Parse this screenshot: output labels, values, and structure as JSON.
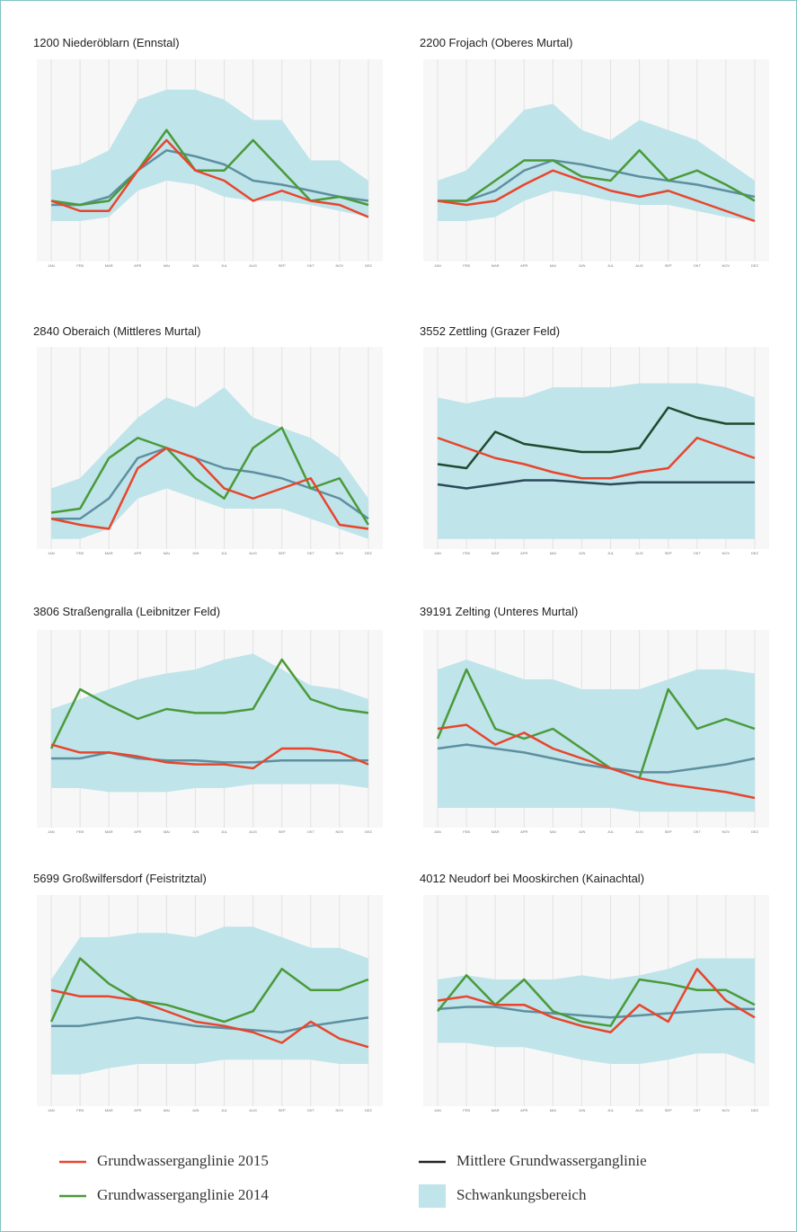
{
  "chart_data": [
    {
      "type": "line",
      "title": "1200 Niederöblarn (Ennstal)",
      "categories": [
        "JAN",
        "FEB",
        "MAR",
        "APR",
        "MAI",
        "JUN",
        "JUL",
        "AUG",
        "SEP",
        "OKT",
        "NOV",
        "DEZ"
      ],
      "ylim": [
        0,
        100
      ],
      "grid": true,
      "band": {
        "color": "#bfe4ea",
        "lower": [
          20,
          20,
          22,
          35,
          40,
          38,
          32,
          30,
          30,
          28,
          25,
          22
        ],
        "upper": [
          45,
          48,
          55,
          80,
          85,
          85,
          80,
          70,
          70,
          50,
          50,
          40
        ]
      },
      "series": [
        {
          "color": "#5e8fa0",
          "values": [
            28,
            28,
            32,
            45,
            55,
            52,
            48,
            40,
            38,
            35,
            32,
            30
          ]
        },
        {
          "color": "#4a9a3a",
          "values": [
            30,
            28,
            30,
            45,
            65,
            45,
            45,
            60,
            45,
            30,
            32,
            28
          ]
        },
        {
          "color": "#e8452c",
          "values": [
            30,
            25,
            25,
            45,
            60,
            45,
            40,
            30,
            35,
            30,
            28,
            22
          ]
        }
      ]
    },
    {
      "type": "line",
      "title": "2200 Frojach (Oberes Murtal)",
      "categories": [
        "JAN",
        "FEB",
        "MAR",
        "APR",
        "MAI",
        "JUN",
        "JUL",
        "AUG",
        "SEP",
        "OKT",
        "NOV",
        "DEZ"
      ],
      "ylim": [
        0,
        100
      ],
      "grid": true,
      "band": {
        "color": "#bfe4ea",
        "lower": [
          20,
          20,
          22,
          30,
          35,
          33,
          30,
          28,
          28,
          25,
          22,
          20
        ],
        "upper": [
          40,
          45,
          60,
          75,
          78,
          65,
          60,
          70,
          65,
          60,
          50,
          40
        ]
      },
      "series": [
        {
          "color": "#5e8fa0",
          "values": [
            30,
            30,
            35,
            45,
            50,
            48,
            45,
            42,
            40,
            38,
            35,
            32
          ]
        },
        {
          "color": "#4a9a3a",
          "values": [
            30,
            30,
            40,
            50,
            50,
            42,
            40,
            55,
            40,
            45,
            38,
            30
          ]
        },
        {
          "color": "#e8452c",
          "values": [
            30,
            28,
            30,
            38,
            45,
            40,
            35,
            32,
            35,
            30,
            25,
            20
          ]
        }
      ]
    },
    {
      "type": "line",
      "title": "2840 Oberaich (Mittleres Murtal)",
      "categories": [
        "JAN",
        "FEB",
        "MAR",
        "APR",
        "MAI",
        "JUN",
        "JUL",
        "AUG",
        "SEP",
        "OKT",
        "NOV",
        "DEZ"
      ],
      "ylim": [
        0,
        100
      ],
      "grid": true,
      "band": {
        "color": "#bfe4ea",
        "lower": [
          5,
          5,
          10,
          25,
          30,
          25,
          20,
          20,
          20,
          15,
          10,
          5
        ],
        "upper": [
          30,
          35,
          50,
          65,
          75,
          70,
          80,
          65,
          60,
          55,
          45,
          25
        ]
      },
      "series": [
        {
          "color": "#5e8fa0",
          "values": [
            15,
            15,
            25,
            45,
            50,
            45,
            40,
            38,
            35,
            30,
            25,
            15
          ]
        },
        {
          "color": "#4a9a3a",
          "values": [
            18,
            20,
            45,
            55,
            50,
            35,
            25,
            50,
            60,
            30,
            35,
            12
          ]
        },
        {
          "color": "#e8452c",
          "values": [
            15,
            12,
            10,
            40,
            50,
            45,
            30,
            25,
            30,
            35,
            12,
            10
          ]
        }
      ]
    },
    {
      "type": "line",
      "title": "3552 Zettling (Grazer Feld)",
      "categories": [
        "JAN",
        "FEB",
        "MAR",
        "APR",
        "MAI",
        "JUN",
        "JUL",
        "AUG",
        "SEP",
        "OKT",
        "NOV",
        "DEZ"
      ],
      "ylim": [
        0,
        100
      ],
      "grid": true,
      "band": {
        "color": "#bfe4ea",
        "lower": [
          5,
          5,
          5,
          5,
          5,
          5,
          5,
          5,
          5,
          5,
          5,
          5
        ],
        "upper": [
          75,
          72,
          75,
          75,
          80,
          80,
          80,
          82,
          82,
          82,
          80,
          75
        ]
      },
      "series": [
        {
          "color": "#2d4a5a",
          "values": [
            32,
            30,
            32,
            34,
            34,
            33,
            32,
            33,
            33,
            33,
            33,
            33
          ]
        },
        {
          "color": "#1f4a2e",
          "values": [
            42,
            40,
            58,
            52,
            50,
            48,
            48,
            50,
            70,
            65,
            62,
            62
          ]
        },
        {
          "color": "#e8452c",
          "values": [
            55,
            50,
            45,
            42,
            38,
            35,
            35,
            38,
            40,
            55,
            50,
            45
          ]
        }
      ]
    },
    {
      "type": "line",
      "title": "3806 Straßengralla (Leibnitzer Feld)",
      "categories": [
        "JAN",
        "FEB",
        "MAR",
        "APR",
        "MAI",
        "JUN",
        "JUL",
        "AUG",
        "SEP",
        "OKT",
        "NOV",
        "DEZ"
      ],
      "ylim": [
        0,
        100
      ],
      "grid": true,
      "band": {
        "color": "#bfe4ea",
        "lower": [
          20,
          20,
          18,
          18,
          18,
          20,
          20,
          22,
          22,
          22,
          22,
          20
        ],
        "upper": [
          60,
          65,
          70,
          75,
          78,
          80,
          85,
          88,
          80,
          72,
          70,
          65
        ]
      },
      "series": [
        {
          "color": "#5e8fa0",
          "values": [
            35,
            35,
            38,
            35,
            34,
            34,
            33,
            33,
            34,
            34,
            34,
            34
          ]
        },
        {
          "color": "#4a9a3a",
          "values": [
            40,
            70,
            62,
            55,
            60,
            58,
            58,
            60,
            85,
            65,
            60,
            58
          ]
        },
        {
          "color": "#e8452c",
          "values": [
            42,
            38,
            38,
            36,
            33,
            32,
            32,
            30,
            40,
            40,
            38,
            32
          ]
        }
      ]
    },
    {
      "type": "line",
      "title": "39191 Zelting (Unteres Murtal)",
      "categories": [
        "JAN",
        "FEB",
        "MAR",
        "APR",
        "MAI",
        "JUN",
        "JUL",
        "AUG",
        "SEP",
        "OKT",
        "NOV",
        "DEZ"
      ],
      "ylim": [
        0,
        100
      ],
      "grid": true,
      "band": {
        "color": "#bfe4ea",
        "lower": [
          10,
          10,
          10,
          10,
          10,
          10,
          10,
          8,
          8,
          8,
          8,
          8
        ],
        "upper": [
          80,
          85,
          80,
          75,
          75,
          70,
          70,
          70,
          75,
          80,
          80,
          78
        ]
      },
      "series": [
        {
          "color": "#5e8fa0",
          "values": [
            40,
            42,
            40,
            38,
            35,
            32,
            30,
            28,
            28,
            30,
            32,
            35
          ]
        },
        {
          "color": "#4a9a3a",
          "values": [
            45,
            80,
            50,
            45,
            50,
            40,
            30,
            25,
            70,
            50,
            55,
            50
          ]
        },
        {
          "color": "#e8452c",
          "values": [
            50,
            52,
            42,
            48,
            40,
            35,
            30,
            25,
            22,
            20,
            18,
            15
          ]
        }
      ]
    },
    {
      "type": "line",
      "title": "5699 Großwilfersdorf (Feistritztal)",
      "categories": [
        "JAN",
        "FEB",
        "MAR",
        "APR",
        "MAI",
        "JUN",
        "JUL",
        "AUG",
        "SEP",
        "OKT",
        "NOV",
        "DEZ"
      ],
      "ylim": [
        0,
        100
      ],
      "grid": true,
      "band": {
        "color": "#bfe4ea",
        "lower": [
          15,
          15,
          18,
          20,
          20,
          20,
          22,
          22,
          22,
          22,
          20,
          20
        ],
        "upper": [
          60,
          80,
          80,
          82,
          82,
          80,
          85,
          85,
          80,
          75,
          75,
          70
        ]
      },
      "series": [
        {
          "color": "#5e8fa0",
          "values": [
            38,
            38,
            40,
            42,
            40,
            38,
            37,
            36,
            35,
            38,
            40,
            42
          ]
        },
        {
          "color": "#4a9a3a",
          "values": [
            40,
            70,
            58,
            50,
            48,
            44,
            40,
            45,
            65,
            55,
            55,
            60
          ]
        },
        {
          "color": "#e8452c",
          "values": [
            55,
            52,
            52,
            50,
            45,
            40,
            38,
            35,
            30,
            40,
            32,
            28
          ]
        }
      ]
    },
    {
      "type": "line",
      "title": "4012 Neudorf bei Mooskirchen (Kainachtal)",
      "categories": [
        "JAN",
        "FEB",
        "MAR",
        "APR",
        "MAI",
        "JUN",
        "JUL",
        "AUG",
        "SEP",
        "OKT",
        "NOV",
        "DEZ"
      ],
      "ylim": [
        0,
        100
      ],
      "grid": true,
      "band": {
        "color": "#bfe4ea",
        "lower": [
          30,
          30,
          28,
          28,
          25,
          22,
          20,
          20,
          22,
          25,
          25,
          20
        ],
        "upper": [
          60,
          62,
          60,
          60,
          60,
          62,
          60,
          62,
          65,
          70,
          70,
          70
        ]
      },
      "series": [
        {
          "color": "#5e8fa0",
          "values": [
            46,
            47,
            47,
            45,
            44,
            43,
            42,
            43,
            44,
            45,
            46,
            46
          ]
        },
        {
          "color": "#4a9a3a",
          "values": [
            45,
            62,
            48,
            60,
            45,
            40,
            38,
            60,
            58,
            55,
            55,
            48
          ]
        },
        {
          "color": "#e8452c",
          "values": [
            50,
            52,
            48,
            48,
            42,
            38,
            35,
            48,
            40,
            65,
            50,
            42
          ]
        }
      ]
    }
  ],
  "legend": [
    {
      "name": "Grundwasserganglinie 2015",
      "color": "#e8452c",
      "shape": "line"
    },
    {
      "name": "Mittlere Grundwasserganglinie",
      "color": "#222222",
      "shape": "line"
    },
    {
      "name": "Grundwasserganglinie 2014",
      "color": "#4a9a3a",
      "shape": "line"
    },
    {
      "name": "Schwankungsbereich",
      "color": "#bfe4ea",
      "shape": "box"
    }
  ]
}
